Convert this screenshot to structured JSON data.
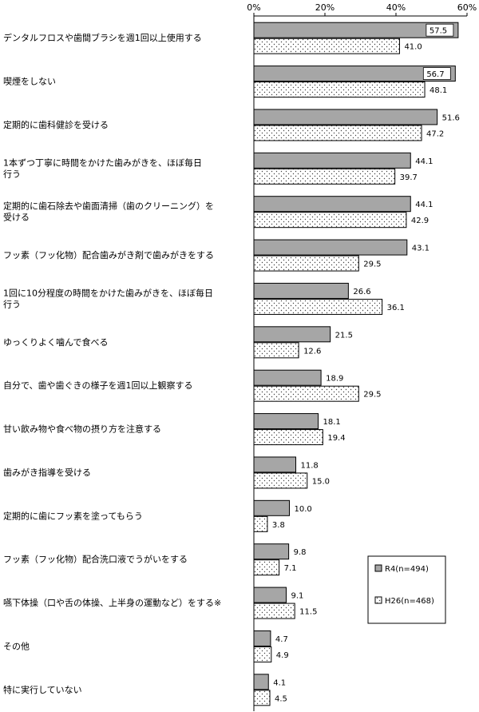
{
  "chart_data": {
    "type": "bar",
    "orientation": "horizontal",
    "xlim": [
      0,
      60
    ],
    "x_ticks": [
      "0%",
      "20%",
      "40%",
      "60%"
    ],
    "x_tick_values": [
      0,
      20,
      40,
      60
    ],
    "grid": false,
    "legend_position": "bottom-right",
    "categories": [
      [
        "デンタルフロスや歯間ブラシを週1回以上使用する"
      ],
      [
        "喫煙をしない"
      ],
      [
        "定期的に歯科健診を受ける"
      ],
      [
        "1本ずつ丁寧に時間をかけた歯みがきを、ほぼ毎日",
        "行う"
      ],
      [
        "定期的に歯石除去や歯面清掃（歯のクリーニング）を",
        "受ける"
      ],
      [
        "フッ素（フッ化物）配合歯みがき剤で歯みがきをする"
      ],
      [
        "1回に10分程度の時間をかけた歯みがきを、ほぼ毎日",
        "行う"
      ],
      [
        "ゆっくりよく噛んで食べる"
      ],
      [
        "自分で、歯や歯ぐきの様子を週1回以上観察する"
      ],
      [
        "甘い飲み物や食べ物の摂り方を注意する"
      ],
      [
        "歯みがき指導を受ける"
      ],
      [
        "定期的に歯にフッ素を塗ってもらう"
      ],
      [
        "フッ素（フッ化物）配合洗口液でうがいをする"
      ],
      [
        "嚥下体操（口や舌の体操、上半身の運動など）をする※"
      ],
      [
        "その他"
      ],
      [
        "特に実行していない"
      ]
    ],
    "series": [
      {
        "name": "R4(n=494)",
        "color": "#a6a6a6",
        "pattern": "solid",
        "values": [
          57.5,
          56.7,
          51.6,
          44.1,
          44.1,
          43.1,
          26.6,
          21.5,
          18.9,
          18.1,
          11.8,
          10.0,
          9.8,
          9.1,
          4.7,
          4.1
        ],
        "labels": [
          "57.5",
          "56.7",
          "51.6",
          "44.1",
          "44.1",
          "43.1",
          "26.6",
          "21.5",
          "18.9",
          "18.1",
          "11.8",
          "10.0",
          "9.8",
          "9.1",
          "4.7",
          "4.1"
        ]
      },
      {
        "name": "H26(n=468)",
        "color": "#ffffff",
        "pattern": "dots",
        "values": [
          41.0,
          48.1,
          47.2,
          39.7,
          42.9,
          29.5,
          36.1,
          12.6,
          29.5,
          19.4,
          15.0,
          3.8,
          7.1,
          11.5,
          4.9,
          4.5
        ],
        "labels": [
          "41.0",
          "48.1",
          "47.2",
          "39.7",
          "42.9",
          "29.5",
          "36.1",
          "12.6",
          "29.5",
          "19.4",
          "15.0",
          "3.8",
          "7.1",
          "11.5",
          "4.9",
          "4.5"
        ]
      }
    ]
  }
}
